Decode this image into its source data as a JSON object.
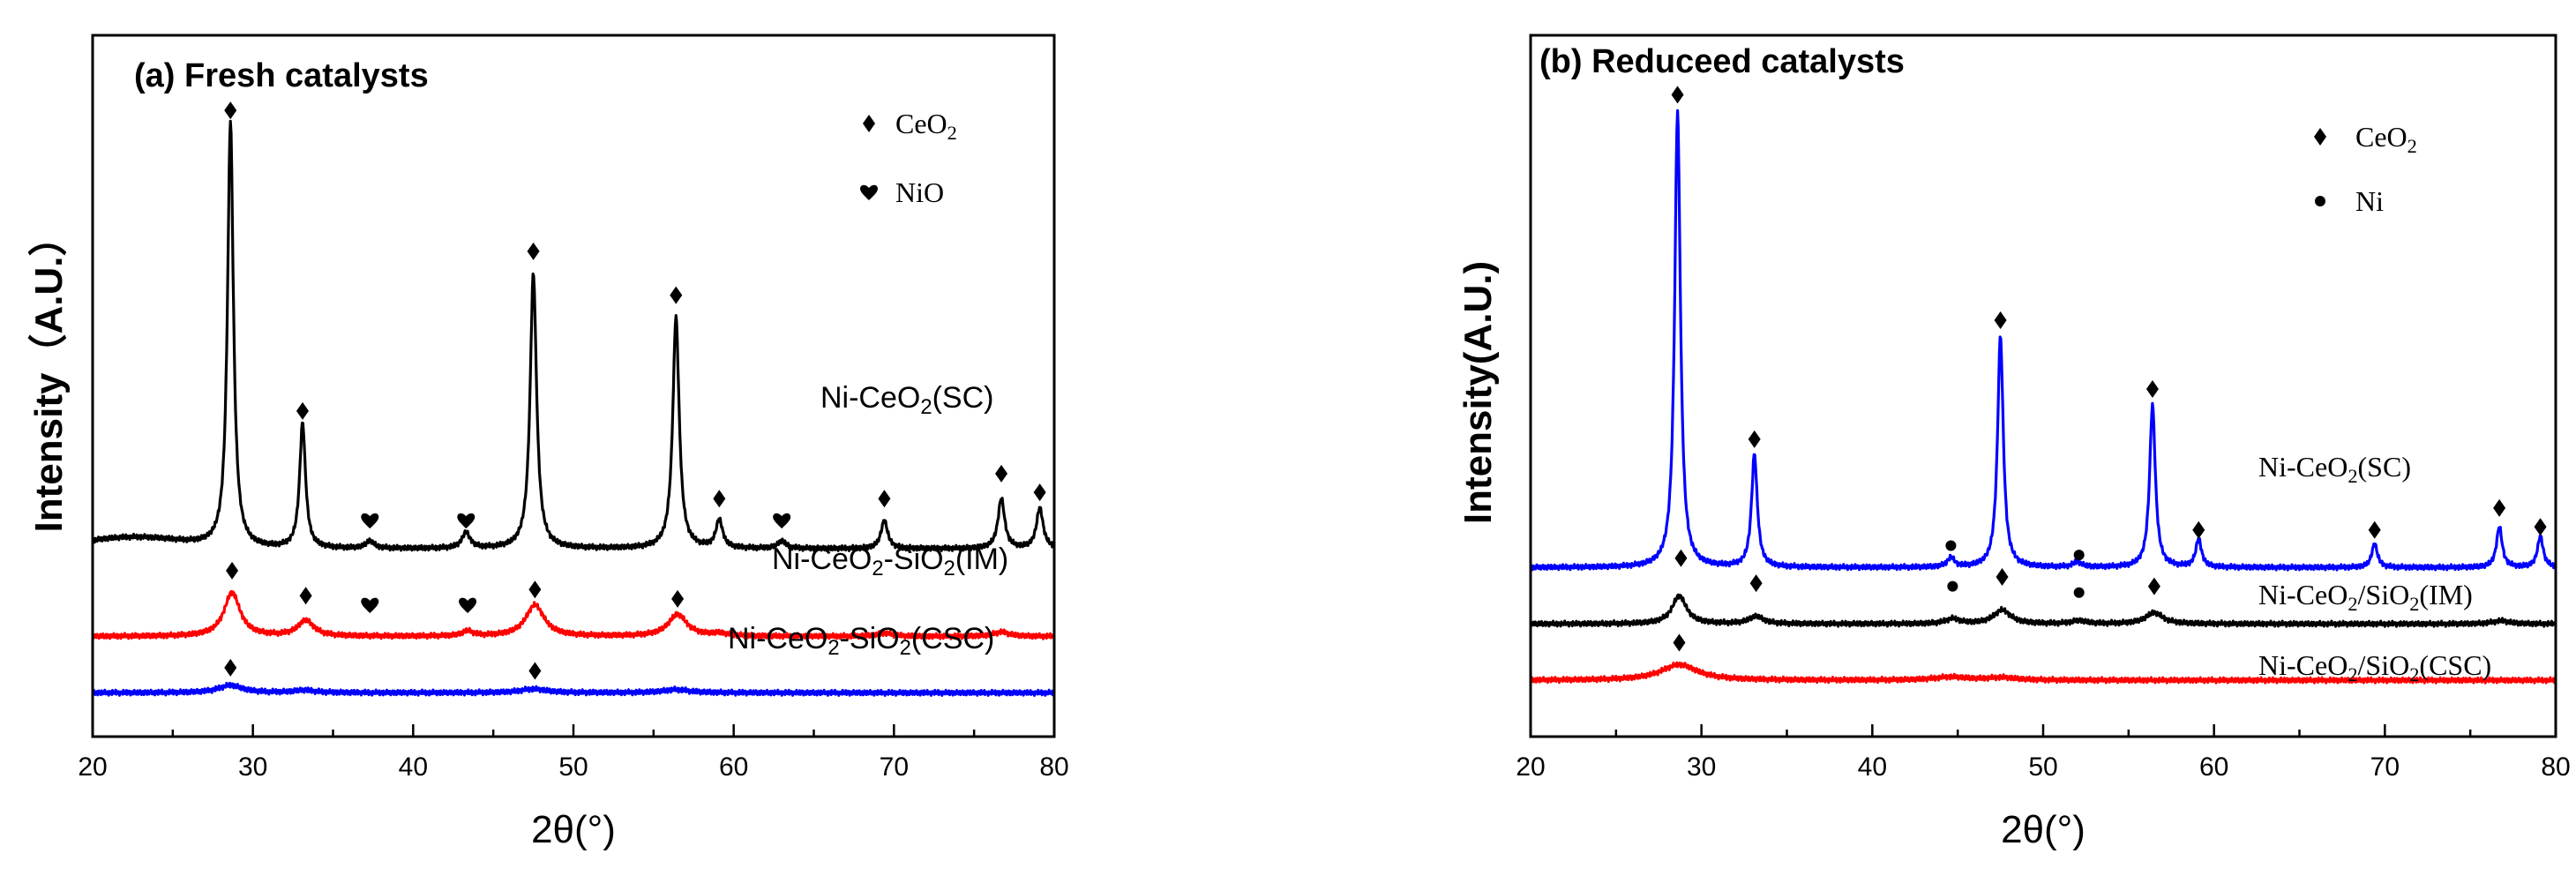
{
  "chart_data": [
    {
      "type": "line",
      "title": "(a) Fresh catalysts",
      "xlabel": "2θ(°)",
      "ylabel": "Intensity（A.U.）",
      "xlim": [
        20,
        80
      ],
      "xticks": [
        "20",
        "30",
        "40",
        "50",
        "60",
        "70",
        "80"
      ],
      "yticks": "none",
      "legend": {
        "placement": "top-right",
        "items": [
          {
            "marker": "diamond",
            "label": "CeO",
            "sub": "2"
          },
          {
            "marker": "heart",
            "label": "NiO",
            "sub": ""
          }
        ]
      },
      "series": [
        {
          "label_parts": [
            {
              "t": "Ni-CeO"
            },
            {
              "t": "2",
              "sub": true
            },
            {
              "t": "(SC)"
            }
          ],
          "color": "#000000",
          "baseline": 0.3,
          "humps": [
            [
              22.5,
              0.018,
              4.5
            ]
          ],
          "peaks": [
            [
              28.6,
              0.68,
              0.22
            ],
            [
              33.1,
              0.2,
              0.22
            ],
            [
              37.3,
              0.012,
              0.3
            ],
            [
              43.3,
              0.025,
              0.3
            ],
            [
              47.5,
              0.44,
              0.24
            ],
            [
              56.4,
              0.37,
              0.24
            ],
            [
              59.1,
              0.045,
              0.25
            ],
            [
              63.0,
              0.012,
              0.3
            ],
            [
              69.4,
              0.045,
              0.25
            ],
            [
              76.7,
              0.08,
              0.25
            ],
            [
              79.1,
              0.065,
              0.25
            ]
          ],
          "markers": [
            {
              "type": "diamond",
              "x": 28.6,
              "y": 1.0
            },
            {
              "type": "diamond",
              "x": 33.1,
              "y": 0.52
            },
            {
              "type": "heart",
              "x": 37.3,
              "y": 0.345
            },
            {
              "type": "heart",
              "x": 43.3,
              "y": 0.345
            },
            {
              "type": "diamond",
              "x": 47.5,
              "y": 0.775
            },
            {
              "type": "diamond",
              "x": 56.4,
              "y": 0.705
            },
            {
              "type": "diamond",
              "x": 59.1,
              "y": 0.38
            },
            {
              "type": "heart",
              "x": 63.0,
              "y": 0.345
            },
            {
              "type": "diamond",
              "x": 69.4,
              "y": 0.38
            },
            {
              "type": "diamond",
              "x": 76.7,
              "y": 0.42
            },
            {
              "type": "diamond",
              "x": 79.1,
              "y": 0.39
            }
          ]
        },
        {
          "label_parts": [
            {
              "t": "Ni-CeO"
            },
            {
              "t": "2",
              "sub": true
            },
            {
              "t": "-SiO"
            },
            {
              "t": "2",
              "sub": true
            },
            {
              "t": "(IM)"
            }
          ],
          "color": "#ff0000",
          "baseline": 0.16,
          "humps": [],
          "peaks": [
            [
              28.7,
              0.07,
              0.6
            ],
            [
              33.3,
              0.025,
              0.6
            ],
            [
              43.4,
              0.008,
              0.4
            ],
            [
              47.6,
              0.05,
              0.7
            ],
            [
              56.5,
              0.035,
              0.7
            ],
            [
              59.1,
              0.004,
              0.6
            ],
            [
              69.4,
              0.005,
              0.6
            ],
            [
              76.7,
              0.007,
              0.6
            ]
          ],
          "markers": [
            {
              "type": "diamond",
              "x": 28.7,
              "y": 0.265
            },
            {
              "type": "diamond",
              "x": 33.3,
              "y": 0.225
            },
            {
              "type": "heart",
              "x": 37.3,
              "y": 0.21
            },
            {
              "type": "heart",
              "x": 43.4,
              "y": 0.21
            },
            {
              "type": "diamond",
              "x": 47.6,
              "y": 0.235
            },
            {
              "type": "diamond",
              "x": 56.5,
              "y": 0.22
            }
          ]
        },
        {
          "label_parts": [
            {
              "t": "Ni-CeO"
            },
            {
              "t": "2",
              "sub": true
            },
            {
              "t": "-SiO"
            },
            {
              "t": "2",
              "sub": true
            },
            {
              "t": "(CSC)"
            }
          ],
          "color": "#0000ff",
          "baseline": 0.07,
          "humps": [],
          "peaks": [
            [
              28.6,
              0.012,
              0.9
            ],
            [
              33.2,
              0.004,
              0.8
            ],
            [
              47.5,
              0.006,
              1.0
            ],
            [
              56.4,
              0.005,
              1.0
            ]
          ],
          "markers": [
            {
              "type": "diamond",
              "x": 28.6,
              "y": 0.11
            },
            {
              "type": "diamond",
              "x": 47.6,
              "y": 0.105
            }
          ]
        }
      ]
    },
    {
      "type": "line",
      "title": "(b) Reduceed catalysts",
      "xlabel": "2θ(°)",
      "ylabel": "Intensity(A.U.)",
      "xlim": [
        20,
        80
      ],
      "xticks": [
        "20",
        "30",
        "40",
        "50",
        "60",
        "70",
        "80"
      ],
      "yticks": "none",
      "legend": {
        "placement": "top-right",
        "items": [
          {
            "marker": "diamond",
            "label": "CeO",
            "sub": "2"
          },
          {
            "marker": "dot",
            "label": "Ni",
            "sub": ""
          }
        ]
      },
      "series": [
        {
          "label_parts": [
            {
              "t": "Ni-CeO"
            },
            {
              "t": "2",
              "sub": true
            },
            {
              "t": "(SC)"
            }
          ],
          "color": "#0000ff",
          "baseline": 0.27,
          "humps": [],
          "peaks": [
            [
              28.6,
              0.73,
              0.2
            ],
            [
              33.1,
              0.18,
              0.2
            ],
            [
              44.6,
              0.015,
              0.25
            ],
            [
              47.5,
              0.37,
              0.2
            ],
            [
              52.0,
              0.008,
              0.3
            ],
            [
              56.4,
              0.26,
              0.2
            ],
            [
              59.1,
              0.045,
              0.2
            ],
            [
              69.4,
              0.038,
              0.2
            ],
            [
              76.7,
              0.065,
              0.2
            ],
            [
              79.1,
              0.05,
              0.2
            ]
          ],
          "markers": [
            {
              "type": "diamond",
              "x": 28.6,
              "y": 1.025
            },
            {
              "type": "diamond",
              "x": 33.1,
              "y": 0.475
            },
            {
              "type": "dot",
              "x": 44.6,
              "y": 0.305
            },
            {
              "type": "diamond",
              "x": 47.5,
              "y": 0.665
            },
            {
              "type": "dot",
              "x": 52.1,
              "y": 0.29
            },
            {
              "type": "diamond",
              "x": 56.4,
              "y": 0.555
            },
            {
              "type": "diamond",
              "x": 59.1,
              "y": 0.33
            },
            {
              "type": "diamond",
              "x": 69.4,
              "y": 0.33
            },
            {
              "type": "diamond",
              "x": 76.7,
              "y": 0.365
            },
            {
              "type": "diamond",
              "x": 79.1,
              "y": 0.335
            }
          ]
        },
        {
          "label_parts": [
            {
              "t": "Ni-CeO"
            },
            {
              "t": "2",
              "sub": true
            },
            {
              "t": "/SiO"
            },
            {
              "t": "2",
              "sub": true
            },
            {
              "t": "(IM)"
            }
          ],
          "color": "#000000",
          "baseline": 0.18,
          "humps": [],
          "peaks": [
            [
              28.7,
              0.045,
              0.5
            ],
            [
              33.2,
              0.012,
              0.5
            ],
            [
              44.7,
              0.008,
              0.5
            ],
            [
              47.6,
              0.022,
              0.6
            ],
            [
              52.1,
              0.005,
              0.5
            ],
            [
              56.5,
              0.018,
              0.6
            ],
            [
              76.8,
              0.005,
              0.6
            ]
          ],
          "markers": [
            {
              "type": "diamond",
              "x": 28.8,
              "y": 0.285
            },
            {
              "type": "diamond",
              "x": 33.2,
              "y": 0.245
            },
            {
              "type": "dot",
              "x": 44.7,
              "y": 0.24
            },
            {
              "type": "diamond",
              "x": 47.6,
              "y": 0.255
            },
            {
              "type": "dot",
              "x": 52.1,
              "y": 0.23
            },
            {
              "type": "diamond",
              "x": 56.5,
              "y": 0.24
            }
          ]
        },
        {
          "label_parts": [
            {
              "t": "Ni-CeO"
            },
            {
              "t": "2",
              "sub": true
            },
            {
              "t": "/SiO"
            },
            {
              "t": "2",
              "sub": true
            },
            {
              "t": "(CSC)"
            }
          ],
          "color": "#ff0000",
          "baseline": 0.09,
          "humps": [],
          "peaks": [
            [
              28.7,
              0.025,
              1.3
            ],
            [
              44.6,
              0.005,
              1.2
            ],
            [
              47.6,
              0.004,
              1.0
            ]
          ],
          "markers": [
            {
              "type": "diamond",
              "x": 28.7,
              "y": 0.15
            }
          ]
        }
      ]
    }
  ]
}
